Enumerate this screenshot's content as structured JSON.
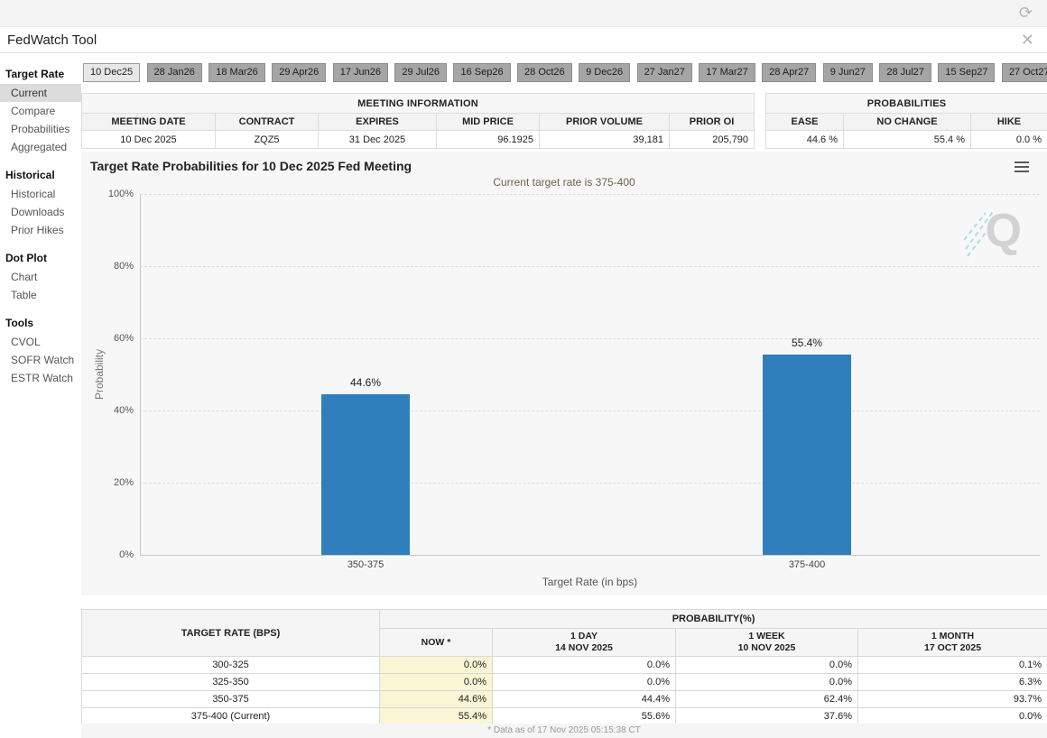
{
  "window": {
    "title": "FedWatch Tool"
  },
  "icons": {
    "refresh": "⟳",
    "close": "✕",
    "menu": "hamburger-menu"
  },
  "sidebar": {
    "sections": [
      {
        "header": "Target Rate",
        "items": [
          {
            "label": "Current",
            "active": true
          },
          {
            "label": "Compare"
          },
          {
            "label": "Probabilities"
          },
          {
            "label": "Aggregated"
          }
        ]
      },
      {
        "header": "Historical",
        "items": [
          {
            "label": "Historical"
          },
          {
            "label": "Downloads"
          },
          {
            "label": "Prior Hikes"
          }
        ]
      },
      {
        "header": "Dot Plot",
        "items": [
          {
            "label": "Chart"
          },
          {
            "label": "Table"
          }
        ]
      },
      {
        "header": "Tools",
        "items": [
          {
            "label": "CVOL"
          },
          {
            "label": "SOFR Watch"
          },
          {
            "label": "ESTR Watch"
          }
        ]
      }
    ]
  },
  "meeting_tabs": {
    "active_index": 0,
    "tabs": [
      "10 Dec25",
      "28 Jan26",
      "18 Mar26",
      "29 Apr26",
      "17 Jun26",
      "29 Jul26",
      "16 Sep26",
      "28 Oct26",
      "9 Dec26",
      "27 Jan27",
      "17 Mar27",
      "28 Apr27",
      "9 Jun27",
      "28 Jul27",
      "15 Sep27",
      "27 Oct27"
    ]
  },
  "meeting_info": {
    "title": "MEETING INFORMATION",
    "columns": [
      "MEETING DATE",
      "CONTRACT",
      "EXPIRES",
      "MID PRICE",
      "PRIOR VOLUME",
      "PRIOR OI"
    ],
    "row": {
      "meeting_date": "10 Dec 2025",
      "contract": "ZQZ5",
      "expires": "31 Dec 2025",
      "mid_price": "96.1925",
      "prior_volume": "39,181",
      "prior_oi": "205,790"
    }
  },
  "probabilities_summary": {
    "title": "PROBABILITIES",
    "columns": [
      "EASE",
      "NO CHANGE",
      "HIKE"
    ],
    "row": {
      "ease": "44.6 %",
      "no_change": "55.4 %",
      "hike": "0.0 %"
    }
  },
  "chart_data": {
    "type": "bar",
    "title": "Target Rate Probabilities for 10 Dec 2025 Fed Meeting",
    "subtitle": "Current target rate is 375-400",
    "categories": [
      "350-375",
      "375-400"
    ],
    "values": [
      44.6,
      55.4
    ],
    "bar_labels": [
      "44.6%",
      "55.4%"
    ],
    "xlabel": "Target Rate (in bps)",
    "ylabel": "Probability",
    "ylim": [
      0,
      100
    ],
    "yticks": [
      "0%",
      "20%",
      "40%",
      "60%",
      "80%",
      "100%"
    ],
    "grid": "horizontal-dashed",
    "legend": "none",
    "bar_color": "#2f7fbc",
    "watermark": "Q"
  },
  "prob_table": {
    "left_header": "TARGET RATE (BPS)",
    "group_header": "PROBABILITY(%)",
    "columns": [
      {
        "label": "NOW *",
        "sub": ""
      },
      {
        "label": "1 DAY",
        "sub": "14 NOV 2025"
      },
      {
        "label": "1 WEEK",
        "sub": "10 NOV 2025"
      },
      {
        "label": "1 MONTH",
        "sub": "17 OCT 2025"
      }
    ],
    "rows": [
      {
        "rate": "300-325",
        "now": "0.0%",
        "day": "0.0%",
        "week": "0.0%",
        "month": "0.1%"
      },
      {
        "rate": "325-350",
        "now": "0.0%",
        "day": "0.0%",
        "week": "0.0%",
        "month": "6.3%"
      },
      {
        "rate": "350-375",
        "now": "44.6%",
        "day": "44.4%",
        "week": "62.4%",
        "month": "93.7%"
      },
      {
        "rate": "375-400 (Current)",
        "now": "55.4%",
        "day": "55.6%",
        "week": "37.6%",
        "month": "0.0%"
      }
    ],
    "footnote": "* Data as of 17 Nov 2025 05:15:38 CT"
  }
}
